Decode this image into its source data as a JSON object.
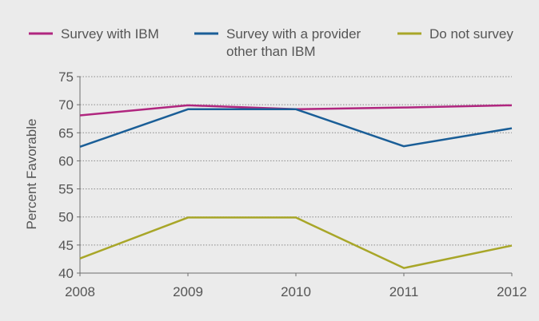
{
  "chart_data": {
    "type": "line",
    "title": "",
    "xlabel": "",
    "ylabel": "Percent Favorable",
    "categories": [
      "2008",
      "2009",
      "2010",
      "2011",
      "2012"
    ],
    "ylim": [
      40,
      75
    ],
    "yticks": [
      40,
      45,
      50,
      55,
      60,
      65,
      70,
      75
    ],
    "grid": "horizontal dotted",
    "legend_position": "top",
    "series": [
      {
        "name": "Survey with IBM",
        "color": "#b0267f",
        "values": [
          68.1,
          69.9,
          69.2,
          69.5,
          69.9
        ]
      },
      {
        "name_lines": [
          "Survey with a provider",
          "other than IBM"
        ],
        "color": "#1a5e97",
        "values": [
          62.5,
          69.2,
          69.2,
          62.6,
          65.8
        ]
      },
      {
        "name": "Do not survey",
        "color": "#a8a628",
        "values": [
          42.6,
          49.9,
          49.9,
          40.9,
          44.9
        ]
      }
    ]
  }
}
